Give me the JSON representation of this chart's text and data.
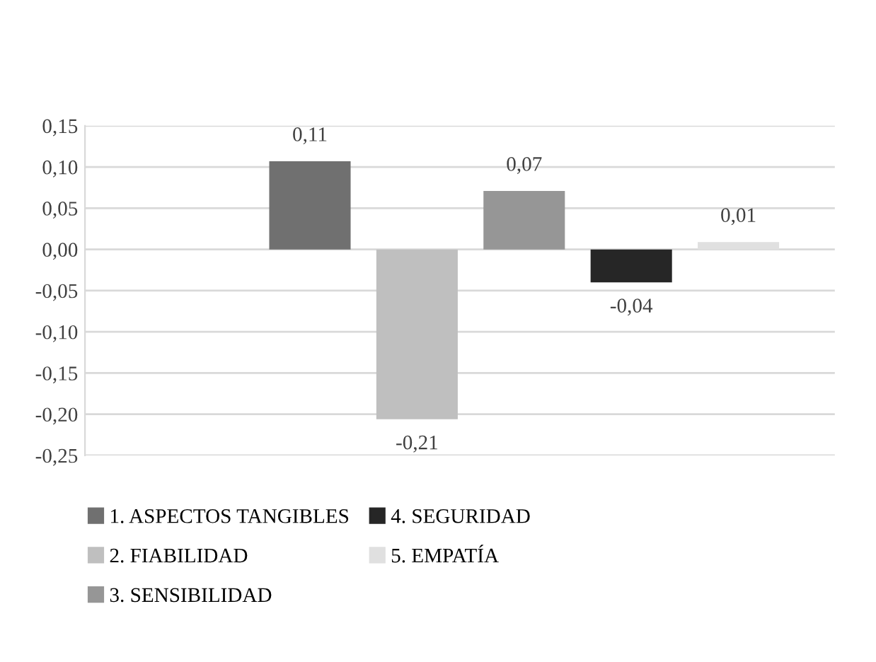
{
  "chart_data": {
    "type": "bar",
    "categories": [
      null
    ],
    "series": [
      {
        "name": "1. ASPECTOS TANGIBLES",
        "color": "#707070",
        "values": [
          0.107
        ],
        "value_labels": [
          "0,11"
        ]
      },
      {
        "name": "2. FIABILIDAD",
        "color": "#bfbfbf",
        "values": [
          -0.206
        ],
        "value_labels": [
          "-0,21"
        ]
      },
      {
        "name": "3. SENSIBILIDAD",
        "color": "#969696",
        "values": [
          0.071
        ],
        "value_labels": [
          "0,07"
        ]
      },
      {
        "name": "4. SEGURIDAD",
        "color": "#262626",
        "values": [
          -0.04
        ],
        "value_labels": [
          "-0,04"
        ]
      },
      {
        "name": "5. EMPATÍA",
        "color": "#e0e0e0",
        "values": [
          0.009
        ],
        "value_labels": [
          "0,01"
        ]
      }
    ],
    "ylim": [
      -0.25,
      0.15
    ],
    "yticks": [
      {
        "value": -0.25,
        "label": "-0,25"
      },
      {
        "value": -0.2,
        "label": "-0,20"
      },
      {
        "value": -0.15,
        "label": "-0,15"
      },
      {
        "value": -0.1,
        "label": "-0,10"
      },
      {
        "value": -0.05,
        "label": "-0,05"
      },
      {
        "value": 0,
        "label": "0,00"
      },
      {
        "value": 0.05,
        "label": "0,05"
      },
      {
        "value": 0.1,
        "label": "0,10"
      },
      {
        "value": 0.15,
        "label": "0,15"
      }
    ],
    "grid": "y",
    "legend": "bottom",
    "tick_labels": "y"
  }
}
